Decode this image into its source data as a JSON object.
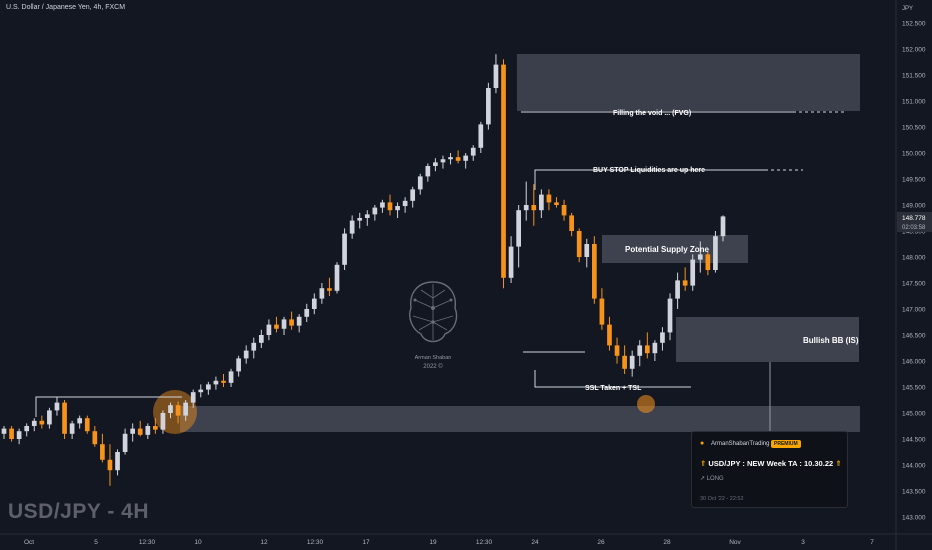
{
  "header": {
    "symbol_title": "U.S. Dollar / Japanese Yen, 4h, FXCM"
  },
  "watermark": "USD/JPY - 4H",
  "logo": {
    "name": "Arman Shaban",
    "year": "2022 ©"
  },
  "chart_data": {
    "type": "candlestick",
    "axis_currency": "JPY",
    "y_ticks": [
      "152.500",
      "152.000",
      "151.500",
      "151.000",
      "150.500",
      "150.000",
      "149.500",
      "149.000",
      "148.500",
      "148.000",
      "147.500",
      "147.000",
      "146.500",
      "146.000",
      "145.500",
      "145.000",
      "144.500",
      "144.000",
      "143.500",
      "143.000"
    ],
    "x_ticks": [
      "Oct",
      "5",
      "12:30",
      "10",
      "12",
      "12:30",
      "17",
      "19",
      "12:30",
      "24",
      "26",
      "28",
      "Nov",
      "3",
      "7"
    ],
    "ylim": [
      142.9,
      152.75
    ],
    "current_price": {
      "value": "148.778",
      "countdown": "02:03:58"
    },
    "colors": {
      "up": "#d1d4dc",
      "down": "#f7931a",
      "zone": "#4a4e5a",
      "label": "#ffffff"
    },
    "candles": [
      [
        144.6,
        144.75,
        144.5,
        144.7
      ],
      [
        144.7,
        144.75,
        144.45,
        144.5
      ],
      [
        144.5,
        144.7,
        144.4,
        144.65
      ],
      [
        144.65,
        144.8,
        144.55,
        144.75
      ],
      [
        144.75,
        144.9,
        144.65,
        144.85
      ],
      [
        144.85,
        144.95,
        144.7,
        144.78
      ],
      [
        144.78,
        145.1,
        144.7,
        145.05
      ],
      [
        145.05,
        145.3,
        144.95,
        145.2
      ],
      [
        145.2,
        145.25,
        144.5,
        144.6
      ],
      [
        144.6,
        144.85,
        144.5,
        144.8
      ],
      [
        144.8,
        144.95,
        144.7,
        144.9
      ],
      [
        144.9,
        144.95,
        144.6,
        144.65
      ],
      [
        144.65,
        144.75,
        144.35,
        144.4
      ],
      [
        144.4,
        144.6,
        144.05,
        144.1
      ],
      [
        144.1,
        144.4,
        143.6,
        143.9
      ],
      [
        143.9,
        144.3,
        143.8,
        144.25
      ],
      [
        144.25,
        144.7,
        144.2,
        144.6
      ],
      [
        144.6,
        144.8,
        144.45,
        144.7
      ],
      [
        144.7,
        144.85,
        144.55,
        144.58
      ],
      [
        144.58,
        144.8,
        144.5,
        144.75
      ],
      [
        144.75,
        144.9,
        144.6,
        144.68
      ],
      [
        144.68,
        145.05,
        144.6,
        145.0
      ],
      [
        145.0,
        145.2,
        144.9,
        145.15
      ],
      [
        145.15,
        145.22,
        144.8,
        144.95
      ],
      [
        144.95,
        145.25,
        144.85,
        145.2
      ],
      [
        145.2,
        145.45,
        145.1,
        145.4
      ],
      [
        145.4,
        145.55,
        145.3,
        145.45
      ],
      [
        145.45,
        145.6,
        145.35,
        145.55
      ],
      [
        145.55,
        145.7,
        145.45,
        145.62
      ],
      [
        145.62,
        145.75,
        145.5,
        145.58
      ],
      [
        145.58,
        145.85,
        145.5,
        145.8
      ],
      [
        145.8,
        146.1,
        145.7,
        146.05
      ],
      [
        146.05,
        146.3,
        145.95,
        146.2
      ],
      [
        146.2,
        146.45,
        146.05,
        146.35
      ],
      [
        146.35,
        146.6,
        146.25,
        146.5
      ],
      [
        146.5,
        146.8,
        146.4,
        146.7
      ],
      [
        146.7,
        146.85,
        146.55,
        146.62
      ],
      [
        146.62,
        146.85,
        146.5,
        146.8
      ],
      [
        146.8,
        146.95,
        146.6,
        146.68
      ],
      [
        146.68,
        146.9,
        146.55,
        146.85
      ],
      [
        146.85,
        147.1,
        146.75,
        147.0
      ],
      [
        147.0,
        147.3,
        146.9,
        147.2
      ],
      [
        147.2,
        147.5,
        147.1,
        147.4
      ],
      [
        147.4,
        147.6,
        147.25,
        147.35
      ],
      [
        147.35,
        147.9,
        147.3,
        147.85
      ],
      [
        147.85,
        148.55,
        147.75,
        148.45
      ],
      [
        148.45,
        148.8,
        148.35,
        148.7
      ],
      [
        148.7,
        148.85,
        148.55,
        148.75
      ],
      [
        148.75,
        148.9,
        148.6,
        148.82
      ],
      [
        148.82,
        149.0,
        148.7,
        148.95
      ],
      [
        148.95,
        149.1,
        148.85,
        149.05
      ],
      [
        149.05,
        149.2,
        148.8,
        148.9
      ],
      [
        148.9,
        149.05,
        148.75,
        148.98
      ],
      [
        148.98,
        149.15,
        148.85,
        149.08
      ],
      [
        149.08,
        149.35,
        148.95,
        149.3
      ],
      [
        149.3,
        149.6,
        149.2,
        149.55
      ],
      [
        149.55,
        149.8,
        149.45,
        149.75
      ],
      [
        149.75,
        149.9,
        149.65,
        149.82
      ],
      [
        149.82,
        149.95,
        149.7,
        149.88
      ],
      [
        149.88,
        150.0,
        149.78,
        149.92
      ],
      [
        149.92,
        150.05,
        149.8,
        149.85
      ],
      [
        149.85,
        150.0,
        149.7,
        149.95
      ],
      [
        149.95,
        150.15,
        149.85,
        150.1
      ],
      [
        150.1,
        150.6,
        150.0,
        150.55
      ],
      [
        150.55,
        151.35,
        150.45,
        151.25
      ],
      [
        151.25,
        151.9,
        151.15,
        151.7
      ],
      [
        151.7,
        151.8,
        147.4,
        147.6
      ],
      [
        147.6,
        148.4,
        147.5,
        148.2
      ],
      [
        148.2,
        149.0,
        147.8,
        148.9
      ],
      [
        148.9,
        149.45,
        148.7,
        149.0
      ],
      [
        149.0,
        149.4,
        148.6,
        148.9
      ],
      [
        148.9,
        149.3,
        148.75,
        149.2
      ],
      [
        149.2,
        149.3,
        148.9,
        149.05
      ],
      [
        149.05,
        149.15,
        148.95,
        149.0
      ],
      [
        149.0,
        149.1,
        148.7,
        148.8
      ],
      [
        148.8,
        148.85,
        148.4,
        148.5
      ],
      [
        148.5,
        148.55,
        147.9,
        148.0
      ],
      [
        148.0,
        148.35,
        147.8,
        148.25
      ],
      [
        148.25,
        148.4,
        147.1,
        147.2
      ],
      [
        147.2,
        147.4,
        146.6,
        146.7
      ],
      [
        146.7,
        146.85,
        146.2,
        146.3
      ],
      [
        146.3,
        146.45,
        145.95,
        146.1
      ],
      [
        146.1,
        146.3,
        145.75,
        145.85
      ],
      [
        145.85,
        146.2,
        145.7,
        146.1
      ],
      [
        146.1,
        146.4,
        145.9,
        146.3
      ],
      [
        146.3,
        146.55,
        146.05,
        146.15
      ],
      [
        146.15,
        146.4,
        146.0,
        146.35
      ],
      [
        146.35,
        146.65,
        146.2,
        146.55
      ],
      [
        146.55,
        147.3,
        146.4,
        147.2
      ],
      [
        147.2,
        147.7,
        147.0,
        147.55
      ],
      [
        147.55,
        147.8,
        147.35,
        147.45
      ],
      [
        147.45,
        148.05,
        147.35,
        147.95
      ],
      [
        147.95,
        148.3,
        147.7,
        148.05
      ],
      [
        148.05,
        148.1,
        147.65,
        147.75
      ],
      [
        147.75,
        148.5,
        147.7,
        148.4
      ],
      [
        148.4,
        148.8,
        148.3,
        148.78
      ]
    ]
  },
  "annotations": {
    "fvg": "Filling the void ... (FVG)",
    "bsl": "BUY STOP Liquidities are up here",
    "supply": "Potential Supply Zone",
    "bullish_bb": "Bullish BB (IS)",
    "ssl": "SSL Taken + TSL"
  },
  "idea_card": {
    "author": "ArmanShabanTrading",
    "badge": "PREMIUM",
    "title": "USD/JPY : NEW Week TA : 10.30.22",
    "direction": "↗ LONG",
    "date": "30 Oct '22 - 22:52",
    "icon": "rocket-icon"
  }
}
